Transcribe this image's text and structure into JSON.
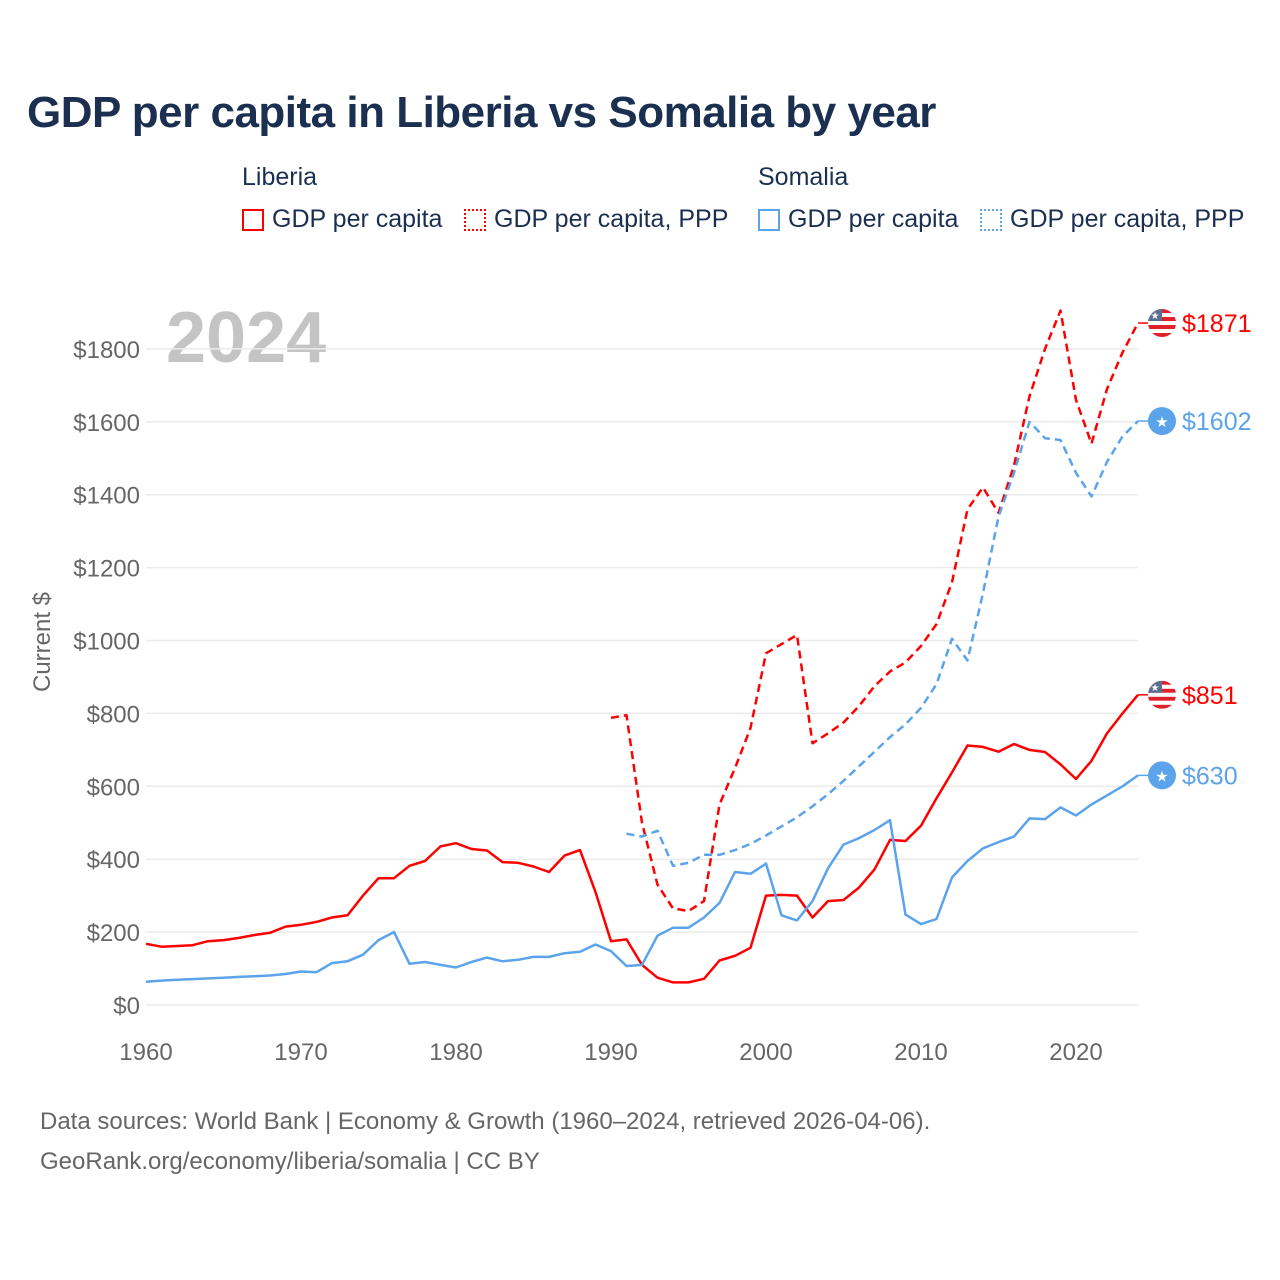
{
  "chart_data": {
    "type": "line",
    "title": "GDP per capita in Liberia vs Somalia by year",
    "xlabel": "",
    "ylabel": "Current $",
    "xlim": [
      1960,
      2024
    ],
    "ylim": [
      0,
      1900
    ],
    "yticks": [
      0,
      200,
      400,
      600,
      800,
      1000,
      1200,
      1400,
      1600,
      1800
    ],
    "ytick_labels": [
      "$0",
      "$200",
      "$400",
      "$600",
      "$800",
      "$1000",
      "$1200",
      "$1400",
      "$1600",
      "$1800"
    ],
    "xticks": [
      1960,
      1970,
      1980,
      1990,
      2000,
      2010,
      2020
    ],
    "xtick_labels": [
      "1960",
      "1970",
      "1980",
      "1990",
      "2000",
      "2010",
      "2020"
    ],
    "year_watermark": "2024",
    "grid": true,
    "legend_placement": "top",
    "legend_groups": [
      "Liberia",
      "Somalia"
    ],
    "series": [
      {
        "name": "GDP per capita",
        "group": "Liberia",
        "color": "#ff0000",
        "dash": false,
        "start": 1960,
        "end_label": "$851",
        "values": [
          168,
          160,
          162,
          164,
          175,
          178,
          184,
          192,
          198,
          215,
          220,
          228,
          240,
          246,
          300,
          348,
          348,
          382,
          395,
          435,
          444,
          428,
          424,
          392,
          390,
          380,
          365,
          410,
          425,
          310,
          175,
          180,
          110,
          75,
          62,
          62,
          72,
          122,
          135,
          157,
          300,
          302,
          300,
          240,
          285,
          288,
          322,
          372,
          453,
          450,
          492,
          567,
          638,
          712,
          708,
          695,
          716,
          700,
          694,
          660,
          620,
          670,
          745,
          800,
          851
        ]
      },
      {
        "name": "GDP per capita, PPP",
        "group": "Liberia",
        "color": "#ff0000",
        "dash": true,
        "start": 1990,
        "end_label": "$1871",
        "values": [
          788,
          795,
          500,
          330,
          265,
          258,
          285,
          550,
          650,
          760,
          965,
          990,
          1015,
          718,
          745,
          775,
          820,
          875,
          915,
          940,
          985,
          1045,
          1160,
          1360,
          1420,
          1350,
          1480,
          1670,
          1800,
          1905,
          1660,
          1540,
          1690,
          1790,
          1871
        ]
      },
      {
        "name": "GDP per capita",
        "group": "Somalia",
        "color": "#5ba3ea",
        "dash": false,
        "start": 1960,
        "end_label": "$630",
        "values": [
          64,
          67,
          69,
          71,
          73,
          75,
          77,
          79,
          81,
          85,
          92,
          90,
          115,
          120,
          138,
          178,
          200,
          113,
          118,
          110,
          103,
          118,
          130,
          120,
          124,
          132,
          132,
          142,
          146,
          166,
          148,
          107,
          110,
          190,
          212,
          212,
          240,
          280,
          365,
          360,
          388,
          246,
          232,
          285,
          375,
          440,
          458,
          480,
          507,
          248,
          222,
          236,
          350,
          395,
          430,
          447,
          462,
          512,
          510,
          542,
          520,
          550,
          575,
          600,
          630
        ]
      },
      {
        "name": "GDP per capita, PPP",
        "group": "Somalia",
        "color": "#5ba3ea",
        "dash": true,
        "start": 1991,
        "end_label": "$1602",
        "values": [
          470,
          462,
          478,
          382,
          390,
          412,
          412,
          425,
          442,
          465,
          490,
          515,
          545,
          578,
          615,
          655,
          695,
          735,
          770,
          815,
          880,
          1005,
          945,
          1130,
          1340,
          1460,
          1600,
          1555,
          1550,
          1460,
          1395,
          1490,
          1560,
          1602
        ]
      }
    ]
  },
  "legend": {
    "liberia": "Liberia",
    "somalia": "Somalia",
    "items": [
      "GDP per capita",
      "GDP per capita, PPP",
      "GDP per capita",
      "GDP per capita, PPP"
    ]
  },
  "footer": {
    "line1": "Data sources: World Bank | Economy & Growth (1960–2024, retrieved 2026-04-06).",
    "line2": "GeoRank.org/economy/liberia/somalia | CC BY"
  }
}
